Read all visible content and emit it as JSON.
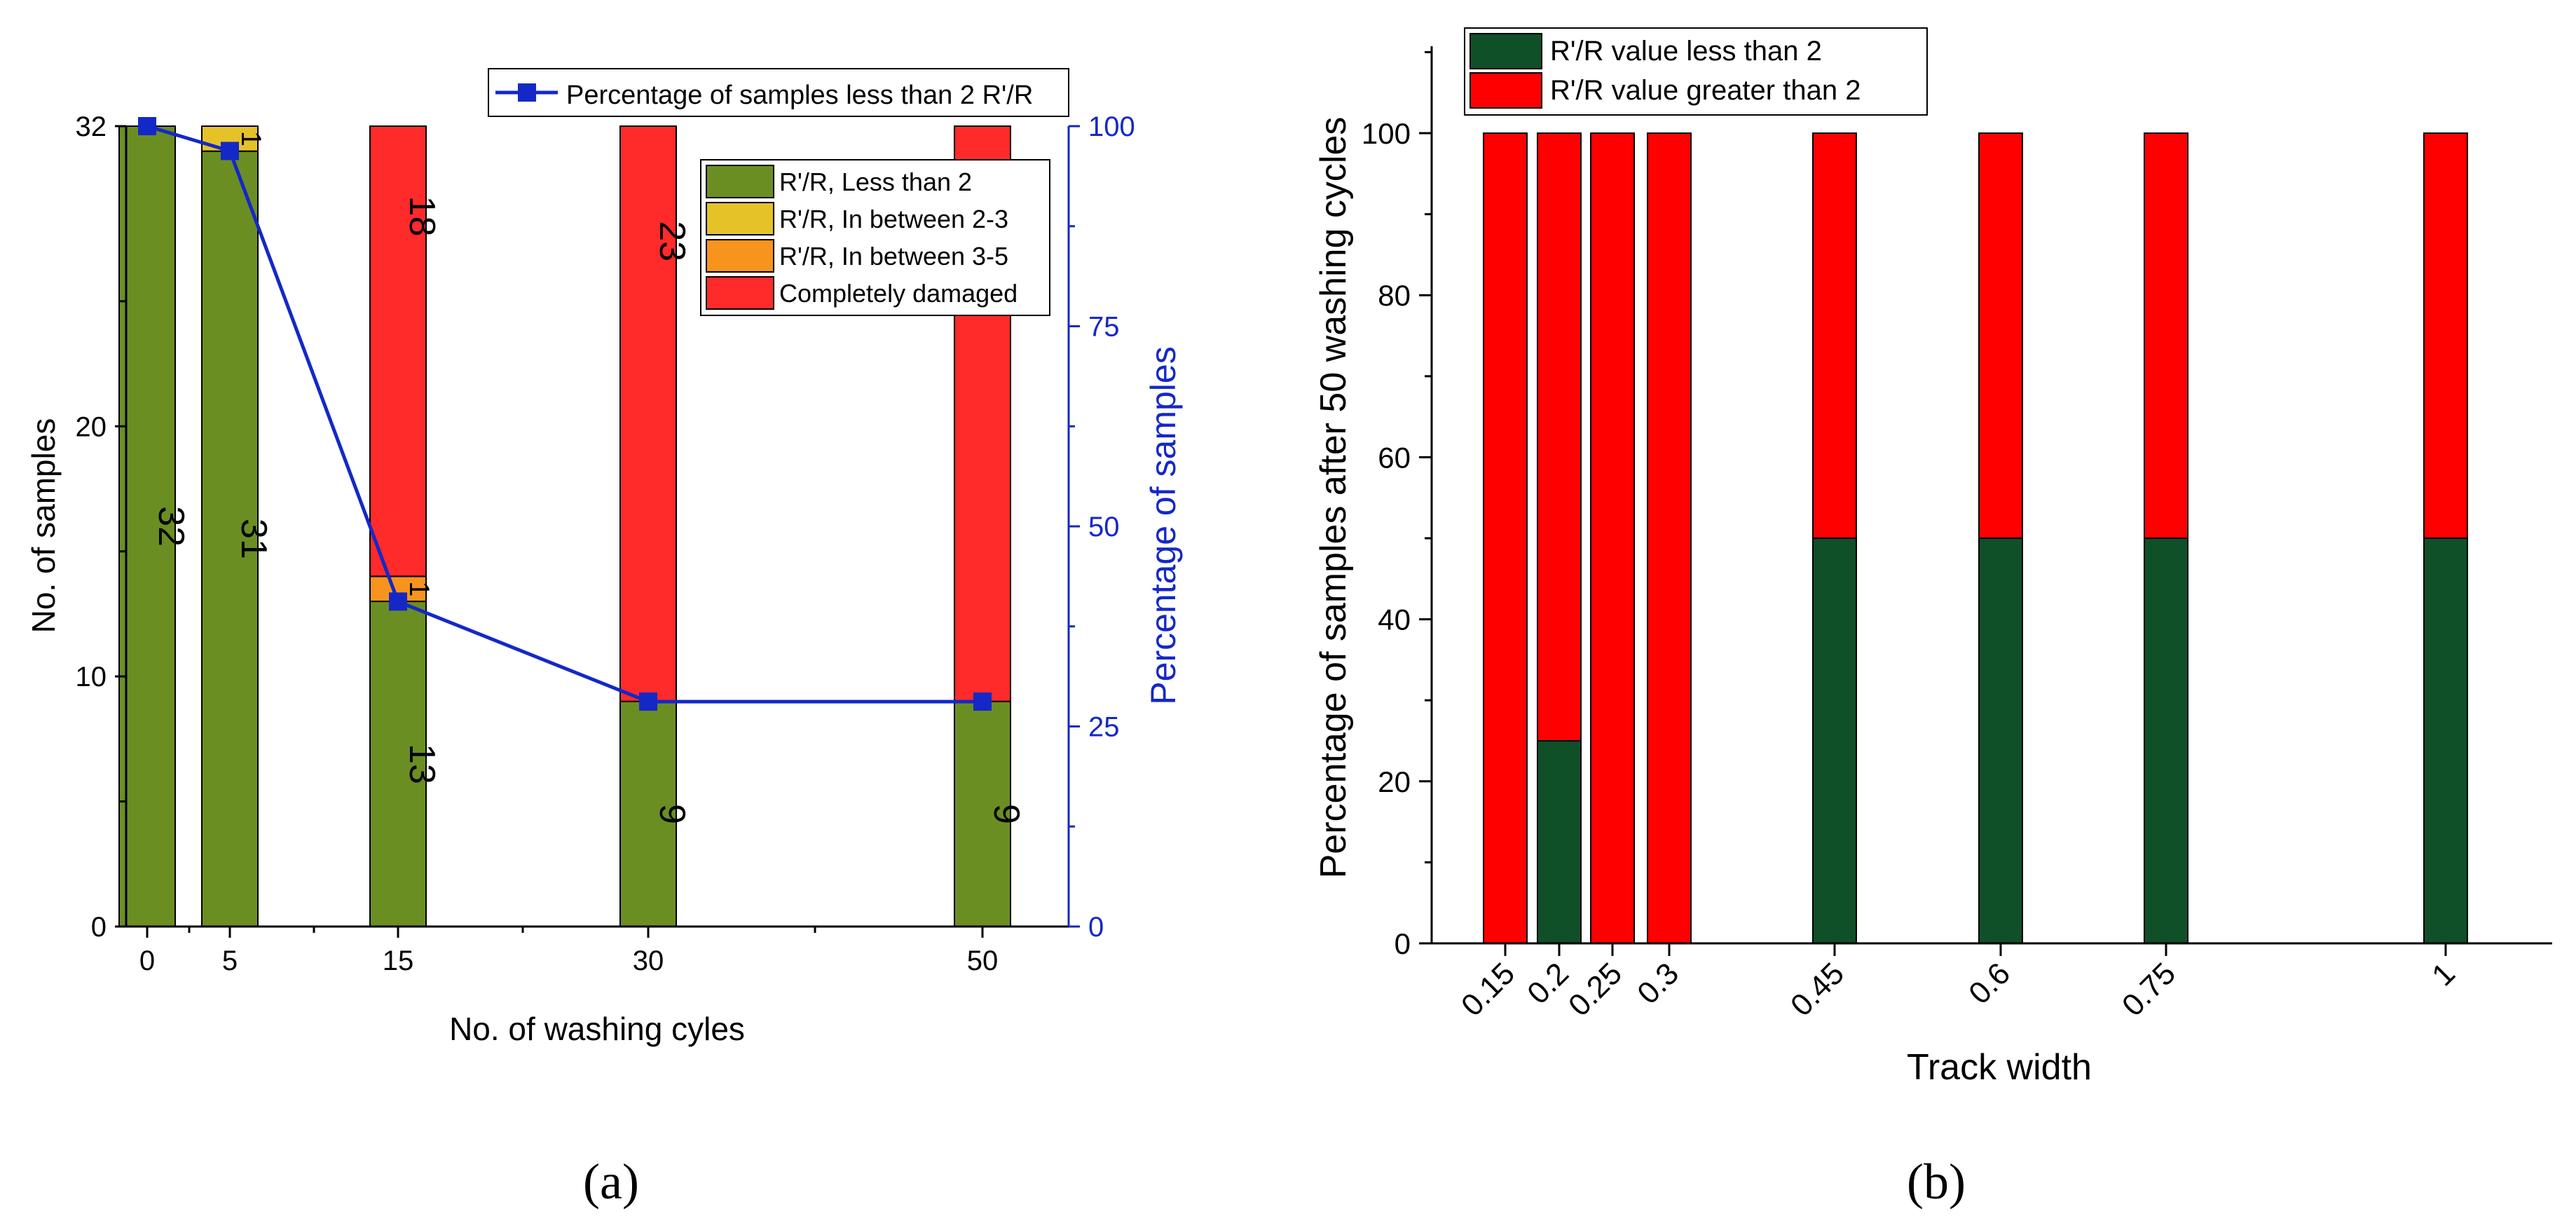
{
  "chart_data": [
    {
      "type": "bar",
      "panel_label": "(a)",
      "stacked": true,
      "categories": [
        "0",
        "5",
        "15",
        "30",
        "50"
      ],
      "xlabel": "No. of washing cyles",
      "ylabel": "No. of samples",
      "y2label": "Percentage of samples",
      "ylim": [
        0,
        32
      ],
      "y2lim": [
        0,
        100
      ],
      "y_ticks": [
        "0",
        "10",
        "20",
        "32"
      ],
      "y2_ticks": [
        "0",
        "25",
        "50",
        "75",
        "100"
      ],
      "series": [
        {
          "name": "R'/R, Less than 2",
          "color": "#6b8e23",
          "values": [
            32,
            31,
            13,
            9,
            9
          ]
        },
        {
          "name": "R'/R, In between 2-3",
          "color": "#e6c229",
          "values": [
            0,
            1,
            0,
            0,
            0
          ]
        },
        {
          "name": "R'/R, In between 3-5",
          "color": "#f7941d",
          "values": [
            0,
            0,
            1,
            0,
            0
          ]
        },
        {
          "name": "Completely damaged",
          "color": "#ff2a2a",
          "values": [
            0,
            0,
            18,
            23,
            23
          ]
        }
      ],
      "data_labels": [
        {
          "x": "0",
          "series": 0,
          "text": "32"
        },
        {
          "x": "5",
          "series": 0,
          "text": "31"
        },
        {
          "x": "5",
          "series": 1,
          "text": "1"
        },
        {
          "x": "15",
          "series": 0,
          "text": "13"
        },
        {
          "x": "15",
          "series": 2,
          "text": "1"
        },
        {
          "x": "15",
          "series": 3,
          "text": "18"
        },
        {
          "x": "30",
          "series": 0,
          "text": "9"
        },
        {
          "x": "30",
          "series": 3,
          "text": "23"
        },
        {
          "x": "50",
          "series": 0,
          "text": "9"
        },
        {
          "x": "50",
          "series": 3,
          "text": "23"
        }
      ],
      "line_series": {
        "name": "Percentage of samples less than 2 R'/R",
        "color": "#1428c8",
        "axis": "right",
        "values": [
          100,
          96.9,
          40.6,
          28.1,
          28.1
        ]
      },
      "legend_position": "top-right"
    },
    {
      "type": "bar",
      "panel_label": "(b)",
      "stacked": true,
      "x": [
        0.15,
        0.2,
        0.25,
        0.3,
        0.45,
        0.6,
        0.75,
        1
      ],
      "tick_labels": [
        "0.15",
        "0.2",
        "0.25",
        "0.3",
        "0.45",
        "0.6",
        "0.75",
        "1"
      ],
      "xlabel": "Track width",
      "ylabel": "Percentage of samples after 50 washing cycles",
      "ylim": [
        0,
        112
      ],
      "y_ticks": [
        "0",
        "20",
        "40",
        "60",
        "80",
        "100"
      ],
      "series": [
        {
          "name": "R'/R value less than 2",
          "color": "#0f5028",
          "values": [
            0,
            25,
            0,
            0,
            50,
            50,
            50,
            50
          ]
        },
        {
          "name": "R'/R value greater than 2",
          "color": "#ff0000",
          "values": [
            100,
            75,
            100,
            100,
            50,
            50,
            50,
            50
          ]
        }
      ],
      "legend_position": "top-left"
    }
  ]
}
